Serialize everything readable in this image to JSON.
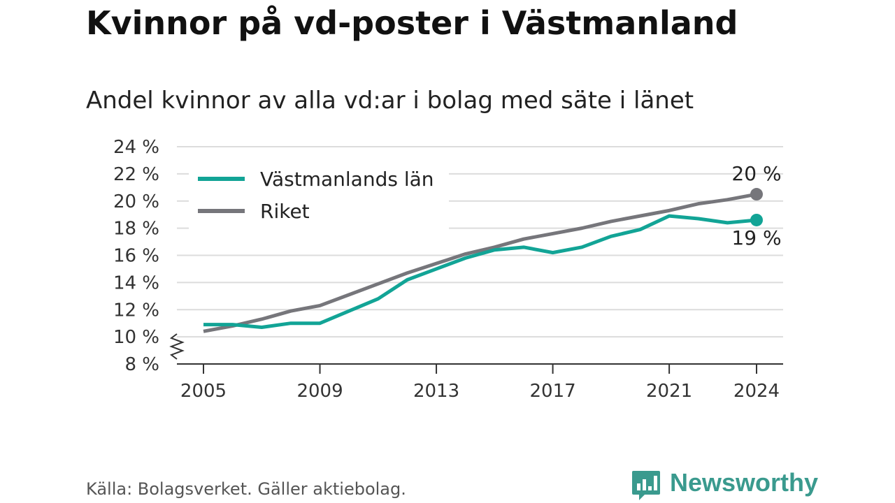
{
  "title": "Kvinnor på vd-poster i Västmanland",
  "subtitle": "Andel kvinnor av alla vd:ar i bolag med säte i länet",
  "source": "Källa: Bolagsverket. Gäller aktiebolag.",
  "brand": {
    "name": "Newsworthy",
    "icon": "newsworthy-logo-icon",
    "color": "#3a9a8e"
  },
  "chart_data": {
    "type": "line",
    "title": "Kvinnor på vd-poster i Västmanland",
    "subtitle": "Andel kvinnor av alla vd:ar i bolag med säte i länet",
    "ylim": [
      8,
      24
    ],
    "xlim": [
      2005,
      2024
    ],
    "y_axis_break": true,
    "grid": "horizontal",
    "legend_position": "top-left",
    "y_ticks": [
      8,
      10,
      12,
      14,
      16,
      18,
      20,
      22,
      24
    ],
    "y_tick_labels": [
      "8 %",
      "10 %",
      "12 %",
      "14 %",
      "16 %",
      "18 %",
      "20 %",
      "22 %",
      "24 %"
    ],
    "x_ticks": [
      2005,
      2009,
      2013,
      2017,
      2021,
      2024
    ],
    "x_tick_labels": [
      "2005",
      "2009",
      "2013",
      "2017",
      "2021",
      "2024"
    ],
    "x": [
      2005,
      2006,
      2007,
      2008,
      2009,
      2010,
      2011,
      2012,
      2013,
      2014,
      2015,
      2016,
      2017,
      2018,
      2019,
      2020,
      2021,
      2022,
      2023,
      2024
    ],
    "series": [
      {
        "name": "Västmanlands län",
        "color": "#12a496",
        "values": [
          10.9,
          10.9,
          10.7,
          11.0,
          11.0,
          11.9,
          12.8,
          14.2,
          15.0,
          15.8,
          16.4,
          16.6,
          16.2,
          16.6,
          17.4,
          17.9,
          18.9,
          18.7,
          18.4,
          18.6
        ],
        "end_label": "19 %"
      },
      {
        "name": "Riket",
        "color": "#76767b",
        "values": [
          10.4,
          10.8,
          11.3,
          11.9,
          12.3,
          13.1,
          13.9,
          14.7,
          15.4,
          16.1,
          16.6,
          17.2,
          17.6,
          18.0,
          18.5,
          18.9,
          19.3,
          19.8,
          20.1,
          20.5
        ],
        "end_label": "20 %"
      }
    ]
  }
}
